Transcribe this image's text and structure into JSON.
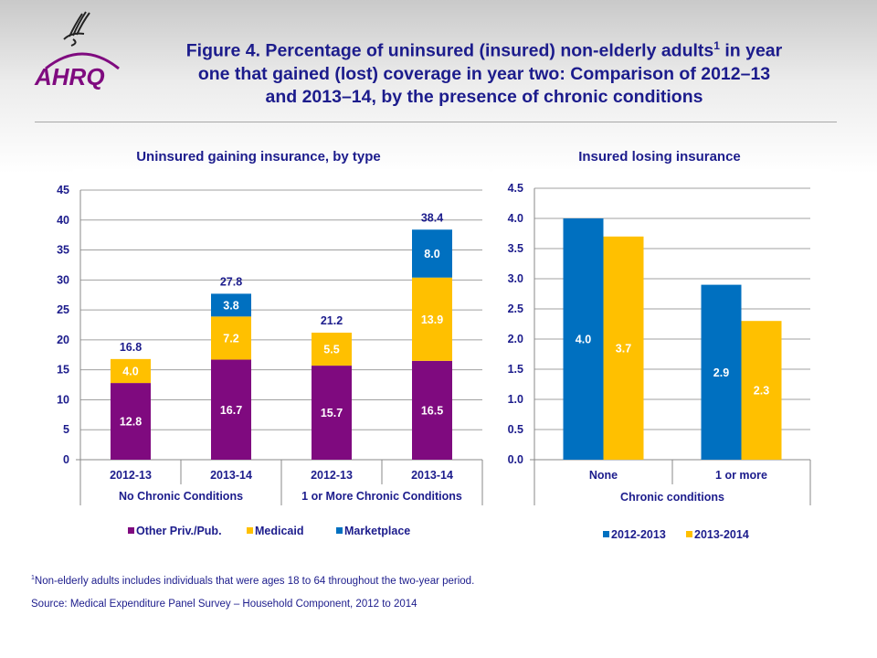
{
  "title": {
    "text": "Figure 4. Percentage of uninsured (insured) non-elderly adults",
    "sup": "1",
    "text2": " in year one that gained (lost) coverage in year two: Comparison of 2012–13 and 2013–14, by the presence of chronic conditions"
  },
  "logo": {
    "text": "AHRQ"
  },
  "colors": {
    "purple": "#7f0a7f",
    "gold": "#ffc000",
    "blue": "#0070c0",
    "text": "#1c1c8c"
  },
  "chart_data": [
    {
      "type": "stacked-bar",
      "title": "Uninsured gaining insurance, by type",
      "ylim": [
        0,
        45
      ],
      "yticks": [
        0,
        5,
        10,
        15,
        20,
        25,
        30,
        35,
        40,
        45
      ],
      "categories": [
        "2012-13",
        "2013-14",
        "2012-13",
        "2013-14"
      ],
      "groups": [
        "No Chronic Conditions",
        "1 or More Chronic Conditions"
      ],
      "series": [
        {
          "name": "Other Priv./Pub.",
          "color": "#7f0a7f",
          "values": [
            12.8,
            16.7,
            15.7,
            16.5
          ],
          "labels": [
            "12.8",
            "16.7",
            "15.7",
            "16.5"
          ]
        },
        {
          "name": "Medicaid",
          "color": "#ffc000",
          "values": [
            4.0,
            7.2,
            5.5,
            13.9
          ],
          "labels": [
            "4.0",
            "7.2",
            "5.5",
            "13.9"
          ]
        },
        {
          "name": "Marketplace",
          "color": "#0070c0",
          "values": [
            0,
            3.8,
            0,
            8.0
          ],
          "labels": [
            "",
            "3.8",
            "",
            "8.0"
          ]
        }
      ],
      "totals": [
        "16.8",
        "27.8",
        "21.2",
        "38.4"
      ],
      "legend": "bottom",
      "grid": true
    },
    {
      "type": "bar",
      "title": "Insured losing insurance",
      "ylim": [
        0,
        4.5
      ],
      "yticks": [
        "0.0",
        "0.5",
        "1.0",
        "1.5",
        "2.0",
        "2.5",
        "3.0",
        "3.5",
        "4.0",
        "4.5"
      ],
      "categories": [
        "None",
        "1 or more"
      ],
      "xlabel": "Chronic conditions",
      "series": [
        {
          "name": "2012-2013",
          "color": "#0070c0",
          "values": [
            4.0,
            2.9
          ],
          "labels": [
            "4.0",
            "2.9"
          ]
        },
        {
          "name": "2013-2014",
          "color": "#ffc000",
          "values": [
            3.7,
            2.3
          ],
          "labels": [
            "3.7",
            "2.3"
          ]
        }
      ],
      "legend": "bottom",
      "grid": true
    }
  ],
  "footnote": {
    "sup": "1",
    "text": "Non-elderly adults includes individuals that were ages 18 to 64 throughout the two-year period."
  },
  "source": "Source:  Medical Expenditure Panel Survey  – Household Component, 2012 to 2014"
}
